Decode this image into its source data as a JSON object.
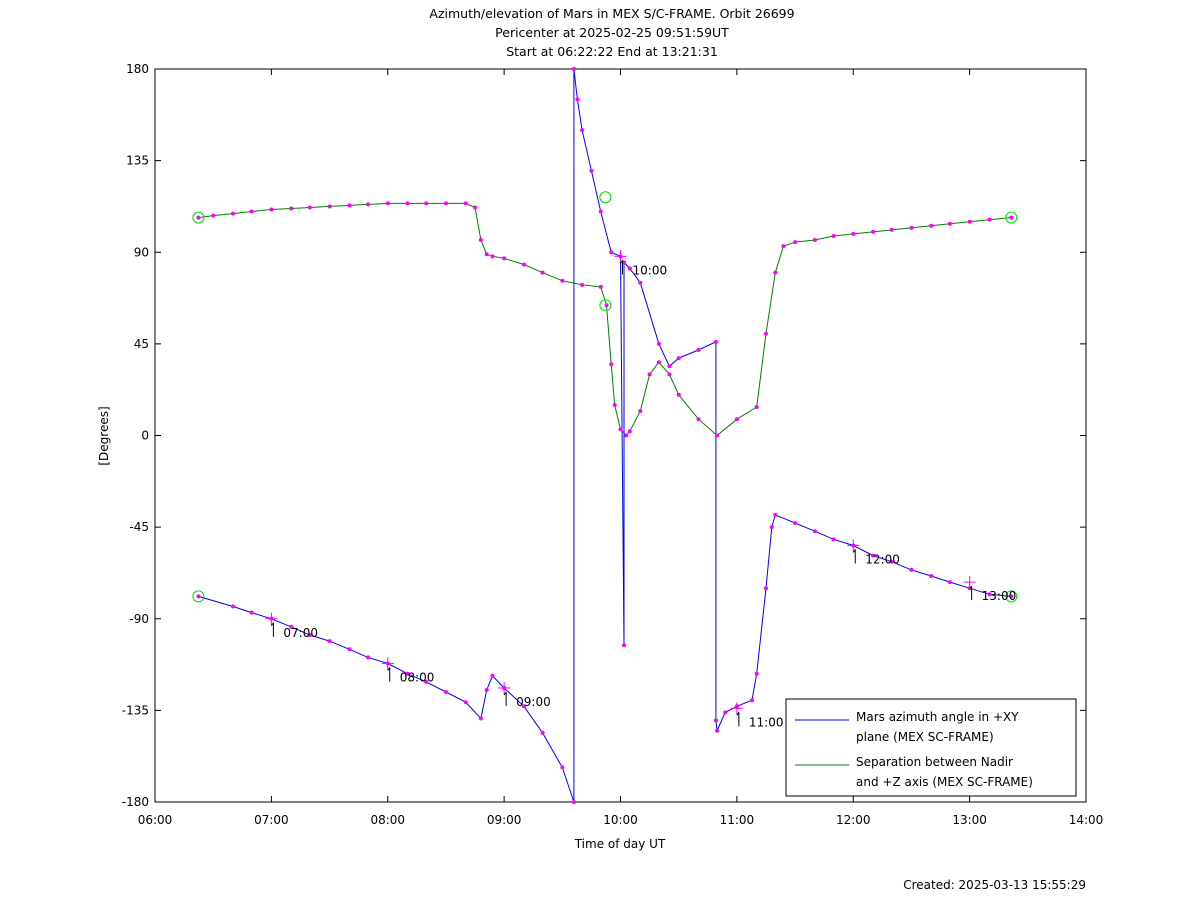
{
  "chart_data": {
    "type": "line",
    "title_lines": [
      "Azimuth/elevation of Mars in MEX S/C-FRAME.  Orbit 26699",
      "Pericenter at 2025-02-25 09:51:59UT",
      "Start at 06:22:22 End at 13:21:31"
    ],
    "xlabel": "Time of day UT",
    "ylabel": "[Degrees]",
    "xlim_hours": [
      6,
      14
    ],
    "ylim": [
      -180,
      180
    ],
    "x_ticks": [
      "06:00",
      "07:00",
      "08:00",
      "09:00",
      "10:00",
      "11:00",
      "12:00",
      "13:00",
      "14:00"
    ],
    "y_ticks": [
      "180",
      "135",
      "90",
      "45",
      "0",
      "-45",
      "-90",
      "-135",
      "-180"
    ],
    "legend_position": "bottom-right",
    "time_annotations": [
      {
        "label": "07:00",
        "t": 7.0,
        "y": -90
      },
      {
        "label": "08:00",
        "t": 8.0,
        "y": -112
      },
      {
        "label": "09:00",
        "t": 9.0,
        "y": -124
      },
      {
        "label": "10:00",
        "t": 10.0,
        "y": 88
      },
      {
        "label": "11:00",
        "t": 11.0,
        "y": -134
      },
      {
        "label": "12:00",
        "t": 12.0,
        "y": -54
      },
      {
        "label": "13:00",
        "t": 13.0,
        "y": -72
      }
    ],
    "series": [
      {
        "name": "Mars azimuth angle in +XY plane (MEX SC-FRAME)",
        "legend_lines": [
          "Mars azimuth angle in +XY",
          "plane (MEX SC-FRAME)"
        ],
        "color": "#0000ff",
        "x": [
          6.373,
          6.67,
          6.83,
          7.0,
          7.17,
          7.33,
          7.5,
          7.67,
          7.83,
          8.0,
          8.17,
          8.33,
          8.5,
          8.67,
          8.8,
          8.85,
          8.9,
          9.0,
          9.17,
          9.33,
          9.5,
          9.6,
          9.6,
          9.63,
          9.67,
          9.75,
          9.83,
          9.92,
          10.0,
          10.03,
          10.03,
          10.08,
          10.08,
          10.17,
          10.33,
          10.42,
          10.5,
          10.67,
          10.82,
          10.82,
          10.83,
          10.9,
          11.0,
          11.13,
          11.17,
          11.25,
          11.3,
          11.33,
          11.5,
          11.67,
          11.83,
          12.0,
          12.17,
          12.33,
          12.5,
          12.67,
          12.83,
          13.0,
          13.17,
          13.358
        ],
        "y": [
          -79,
          -84,
          -87,
          -90,
          -94,
          -98,
          -101,
          -105,
          -109,
          -112,
          -117,
          -121,
          -126,
          -131,
          -139,
          -125,
          -118,
          -124,
          -133,
          -146,
          -163,
          -180,
          180,
          165,
          150,
          130,
          110,
          90,
          88,
          -103,
          85,
          82,
          82,
          75,
          45,
          34,
          38,
          42,
          46,
          -140,
          -145,
          -136,
          -133,
          -130,
          -117,
          -75,
          -45,
          -39,
          -43,
          -47,
          -51,
          -54,
          -59,
          -62,
          -66,
          -69,
          -72,
          -75,
          -78,
          -79
        ]
      },
      {
        "name": "Separation between Nadir and +Z axis (MEX SC-FRAME)",
        "legend_lines": [
          "Separation between Nadir",
          "and +Z axis (MEX SC-FRAME)"
        ],
        "color": "#008000",
        "x": [
          6.373,
          6.5,
          6.67,
          6.83,
          7.0,
          7.17,
          7.33,
          7.5,
          7.67,
          7.83,
          8.0,
          8.17,
          8.33,
          8.5,
          8.67,
          8.75,
          8.8,
          8.85,
          8.9,
          9.0,
          9.17,
          9.33,
          9.5,
          9.67,
          9.83,
          9.88,
          9.92,
          9.95,
          10.0,
          10.05,
          10.08,
          10.17,
          10.25,
          10.33,
          10.42,
          10.5,
          10.67,
          10.83,
          11.0,
          11.17,
          11.25,
          11.33,
          11.4,
          11.5,
          11.67,
          11.83,
          12.0,
          12.17,
          12.33,
          12.5,
          12.67,
          12.83,
          13.0,
          13.17,
          13.358
        ],
        "y": [
          107,
          108,
          109,
          110,
          111,
          111.5,
          112,
          112.5,
          113,
          113.5,
          114,
          114,
          114,
          114,
          114,
          112,
          96,
          89,
          88,
          87,
          84,
          80,
          76,
          74,
          73,
          64,
          35,
          15,
          3,
          0,
          2,
          12,
          30,
          36,
          30,
          20,
          8,
          0,
          8,
          14,
          50,
          80,
          93,
          95,
          96,
          98,
          99,
          100,
          101,
          102,
          103,
          104,
          105,
          106,
          107
        ]
      }
    ],
    "highlight_markers": [
      {
        "t": 6.373,
        "y": -79
      },
      {
        "t": 6.373,
        "y": 107
      },
      {
        "t": 9.87,
        "y": 117
      },
      {
        "t": 9.87,
        "y": 64
      },
      {
        "t": 13.358,
        "y": 107
      },
      {
        "t": 13.358,
        "y": -79
      }
    ],
    "marker_color": "#ff00ff",
    "highlight_color": "#00dd00"
  },
  "footer": {
    "created": "Created: 2025-03-13 15:55:29"
  }
}
